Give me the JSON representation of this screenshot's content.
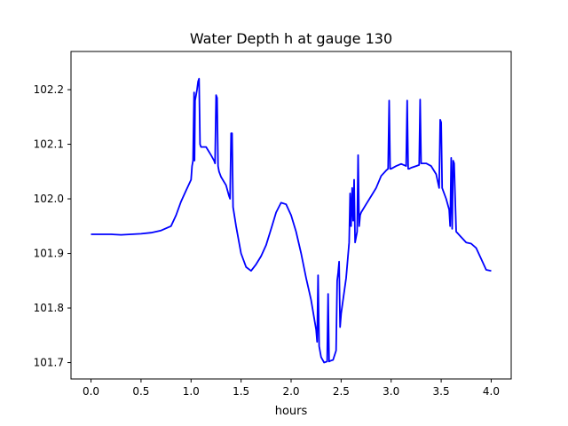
{
  "chart_data": {
    "type": "line",
    "title": "Water Depth h at gauge 130",
    "xlabel": "hours",
    "ylabel": "",
    "xlim": [
      -0.2,
      4.2
    ],
    "ylim": [
      101.67,
      102.27
    ],
    "xticks": [
      0.0,
      0.5,
      1.0,
      1.5,
      2.0,
      2.5,
      3.0,
      3.5,
      4.0
    ],
    "xtick_labels": [
      "0.0",
      "0.5",
      "1.0",
      "1.5",
      "2.0",
      "2.5",
      "3.0",
      "3.5",
      "4.0"
    ],
    "yticks": [
      101.7,
      101.8,
      101.9,
      102.0,
      102.1,
      102.2
    ],
    "ytick_labels": [
      "101.7",
      "101.8",
      "101.9",
      "102.0",
      "102.1",
      "102.2"
    ],
    "grid": false,
    "legend": "none",
    "series": [
      {
        "color": "#0000ff",
        "x": [
          0.0,
          0.1,
          0.2,
          0.3,
          0.4,
          0.5,
          0.6,
          0.7,
          0.8,
          0.85,
          0.9,
          0.95,
          1.0,
          1.01,
          1.02,
          1.03,
          1.035,
          1.04,
          1.05,
          1.06,
          1.07,
          1.08,
          1.09,
          1.1,
          1.15,
          1.2,
          1.23,
          1.24,
          1.25,
          1.26,
          1.27,
          1.28,
          1.3,
          1.35,
          1.38,
          1.39,
          1.4,
          1.41,
          1.42,
          1.45,
          1.5,
          1.55,
          1.6,
          1.65,
          1.7,
          1.75,
          1.8,
          1.85,
          1.9,
          1.95,
          2.0,
          2.05,
          2.1,
          2.15,
          2.2,
          2.25,
          2.26,
          2.27,
          2.28,
          2.3,
          2.33,
          2.36,
          2.37,
          2.38,
          2.39,
          2.42,
          2.45,
          2.46,
          2.47,
          2.48,
          2.49,
          2.5,
          2.55,
          2.58,
          2.59,
          2.6,
          2.61,
          2.62,
          2.63,
          2.64,
          2.66,
          2.67,
          2.68,
          2.69,
          2.7,
          2.75,
          2.8,
          2.85,
          2.9,
          2.95,
          2.97,
          2.98,
          2.99,
          3.0,
          3.05,
          3.1,
          3.15,
          3.16,
          3.17,
          3.18,
          3.2,
          3.25,
          3.28,
          3.29,
          3.3,
          3.32,
          3.35,
          3.4,
          3.45,
          3.48,
          3.49,
          3.5,
          3.51,
          3.55,
          3.58,
          3.59,
          3.6,
          3.61,
          3.62,
          3.63,
          3.65,
          3.7,
          3.75,
          3.8,
          3.85,
          3.9,
          3.95,
          4.0
        ],
        "y": [
          101.935,
          101.935,
          101.935,
          101.934,
          101.935,
          101.936,
          101.938,
          101.942,
          101.95,
          101.97,
          101.995,
          102.015,
          102.035,
          102.06,
          102.07,
          102.195,
          102.07,
          102.18,
          102.19,
          102.2,
          102.215,
          102.22,
          102.1,
          102.095,
          102.095,
          102.08,
          102.07,
          102.065,
          102.19,
          102.185,
          102.06,
          102.05,
          102.04,
          102.025,
          102.005,
          102.0,
          102.12,
          102.12,
          101.985,
          101.95,
          101.9,
          101.875,
          101.868,
          101.88,
          101.895,
          101.915,
          101.945,
          101.975,
          101.993,
          101.99,
          101.97,
          101.94,
          101.9,
          101.855,
          101.815,
          101.76,
          101.738,
          101.86,
          101.73,
          101.71,
          101.7,
          101.702,
          101.826,
          101.702,
          101.703,
          101.705,
          101.722,
          101.85,
          101.865,
          101.885,
          101.765,
          101.79,
          101.855,
          101.92,
          102.01,
          101.95,
          102.02,
          101.96,
          102.035,
          101.92,
          101.94,
          102.08,
          101.95,
          101.97,
          101.975,
          101.99,
          102.005,
          102.02,
          102.042,
          102.052,
          102.055,
          102.18,
          102.055,
          102.055,
          102.06,
          102.064,
          102.06,
          102.18,
          102.055,
          102.055,
          102.057,
          102.06,
          102.062,
          102.182,
          102.065,
          102.065,
          102.065,
          102.06,
          102.045,
          102.02,
          102.145,
          102.14,
          102.02,
          102.0,
          101.98,
          101.95,
          102.075,
          101.945,
          102.07,
          102.065,
          101.94,
          101.93,
          101.92,
          101.918,
          101.91,
          101.89,
          101.87,
          101.868
        ]
      }
    ]
  }
}
